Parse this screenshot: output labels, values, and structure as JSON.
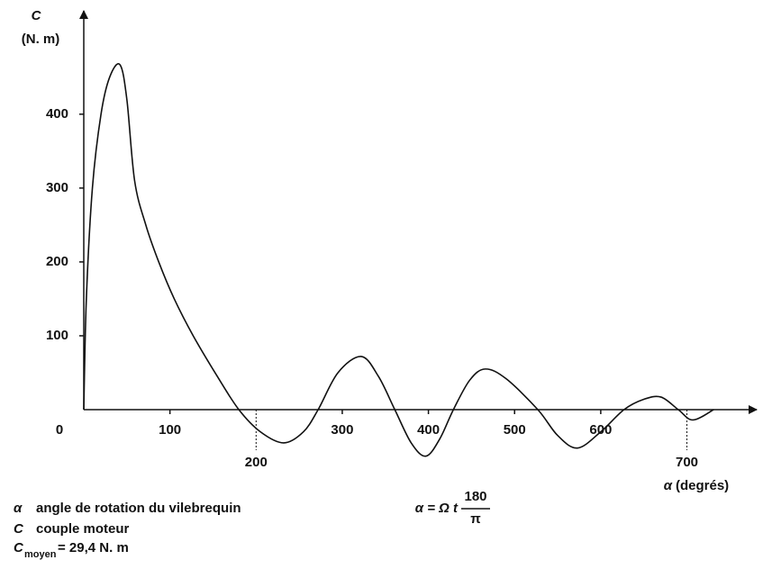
{
  "chart_data": {
    "type": "line",
    "y_symbol": "C",
    "y_unit": "(N. m)",
    "x_label": {
      "symbol": "α",
      "text": "(degrés)"
    },
    "x": [
      0,
      3,
      10,
      20,
      30,
      42,
      50,
      59,
      72,
      87,
      105,
      127,
      155,
      180,
      205,
      232,
      255,
      272,
      295,
      322,
      342,
      361,
      380,
      397,
      413,
      429,
      448,
      466,
      490,
      527,
      550,
      573,
      600,
      627,
      650,
      670,
      690,
      707,
      731
    ],
    "series": [
      {
        "name": "C",
        "color": "#111111",
        "values": [
          0,
          150,
          300,
          400,
          450,
          467,
          420,
          310,
          250,
          200,
          150,
          100,
          45,
          0,
          -30,
          -45,
          -30,
          0,
          50,
          72,
          45,
          0,
          -45,
          -63,
          -40,
          0,
          40,
          55,
          42,
          0,
          -35,
          -52,
          -30,
          0,
          14,
          17,
          0,
          -14,
          0
        ]
      }
    ],
    "xlim": [
      0,
      781
    ],
    "ylim": [
      0,
      540
    ],
    "xticks": [
      0,
      100,
      200,
      300,
      400,
      500,
      600,
      700
    ],
    "yticks": [
      100,
      200,
      300,
      400
    ],
    "notes": [
      {
        "symbol": "α",
        "text": "angle de rotation du vilebrequin",
        "formula": "α = Ω t",
        "numerator": "180",
        "denominator": "π"
      },
      {
        "symbol": "C",
        "text": "couple moteur"
      },
      {
        "symbol": "C",
        "subscript": "moyen",
        "text": "= 29,4 N. m"
      }
    ]
  }
}
